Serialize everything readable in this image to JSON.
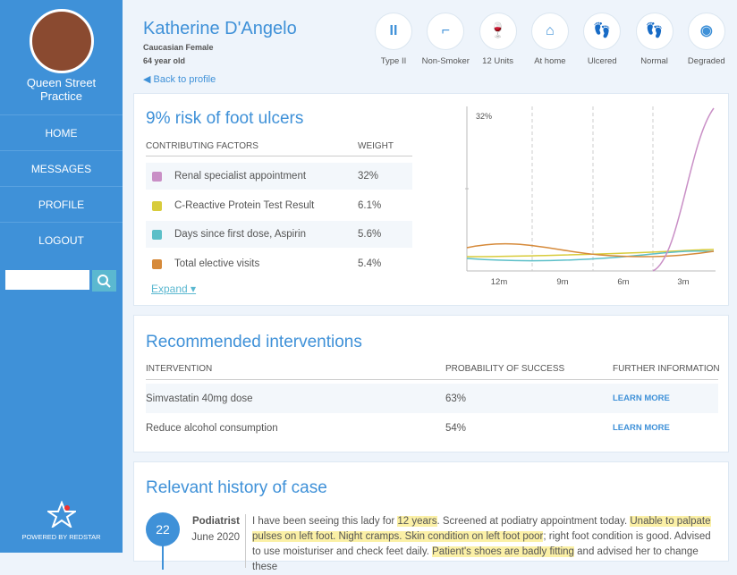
{
  "sidebar": {
    "practice": "Queen Street Practice",
    "nav": [
      "HOME",
      "MESSAGES",
      "PROFILE",
      "LOGOUT"
    ],
    "powered": "POWERED BY REDSTAR"
  },
  "patient": {
    "name": "Katherine D'Angelo",
    "ethnicity": "Caucasian Female",
    "age": "64 year old",
    "back": "Back to profile"
  },
  "status_icons": [
    "Type II",
    "Non-Smoker",
    "12 Units",
    "At home",
    "Ulcered",
    "Normal",
    "Degraded"
  ],
  "risk": {
    "title": "9% risk of foot ulcers",
    "headers": [
      "CONTRIBUTING FACTORS",
      "WEIGHT"
    ],
    "factors": [
      {
        "name": "Renal specialist appointment",
        "weight": "32%",
        "color": "#c98fc6"
      },
      {
        "name": "C-Reactive Protein Test Result",
        "weight": "6.1%",
        "color": "#d8cc3c"
      },
      {
        "name": "Days since first dose, Aspirin",
        "weight": "5.6%",
        "color": "#5cbfc8"
      },
      {
        "name": "Total elective visits",
        "weight": "5.4%",
        "color": "#d68a3a"
      }
    ],
    "expand": "Expand",
    "chart_label": "32%",
    "chart_x": [
      "12m",
      "9m",
      "6m",
      "3m"
    ]
  },
  "interventions": {
    "title": "Recommended interventions",
    "headers": [
      "INTERVENTION",
      "PROBABILITY OF SUCCESS",
      "FURTHER INFORMATION"
    ],
    "rows": [
      [
        "Simvastatin 40mg dose",
        "63%",
        "LEARN MORE"
      ],
      [
        "Reduce alcohol consumption",
        "54%",
        "LEARN MORE"
      ]
    ]
  },
  "history": {
    "title": "Relevant history of case",
    "entries": [
      {
        "day": "22",
        "role": "Podiatrist",
        "date": "June 2020",
        "segments": [
          {
            "text": "I have been seeing this lady for ",
            "highlight": false
          },
          {
            "text": "12 years",
            "highlight": true
          },
          {
            "text": ". Screened at podiatry appointment today. ",
            "highlight": false
          },
          {
            "text": "Unable to palpate pulses on left foot. Night cramps. Skin condition on left foot poor",
            "highlight": true
          },
          {
            "text": "; right foot condition is good. Advised to use moisturiser and check feet daily. ",
            "highlight": false
          },
          {
            "text": "Patient's shoes are badly fitting",
            "highlight": true
          },
          {
            "text": " and advised her to change these",
            "highlight": false
          }
        ]
      }
    ]
  }
}
